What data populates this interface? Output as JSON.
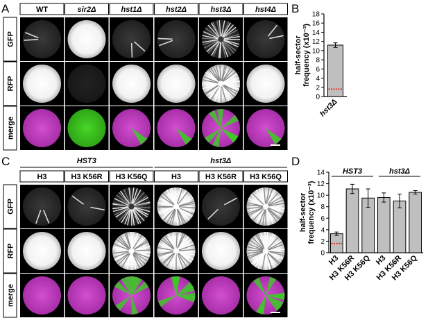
{
  "panels": {
    "A": {
      "letter": "A",
      "columns": [
        "WT",
        "sir2Δ",
        "hst1Δ",
        "hst2Δ",
        "hst3Δ",
        "hst4Δ"
      ],
      "italic": [
        false,
        true,
        true,
        true,
        true,
        true
      ],
      "rows": [
        "GFP",
        "RFP",
        "merge"
      ]
    },
    "C": {
      "letter": "C",
      "groups": [
        "HST3",
        "hst3Δ"
      ],
      "columns": [
        "H3",
        "H3 K56R",
        "H3 K56Q",
        "H3",
        "H3 K56R",
        "H3 K56Q"
      ],
      "rows": [
        "GFP",
        "RFP",
        "merge"
      ]
    }
  },
  "colors": {
    "bar": "#bfbfbf",
    "baseline": "#e0342b",
    "gfp": "#38c81e",
    "rfp_merge": "#c03cc0",
    "background": "#000000"
  },
  "chart_data": [
    {
      "panel": "B",
      "type": "bar",
      "ylabel": "half-sector frequency (x10⁻³)",
      "ylabel_lines": [
        "half-sector",
        "frequency (x10⁻³)"
      ],
      "ylim": [
        0,
        18
      ],
      "yticks": [
        0,
        2,
        4,
        6,
        8,
        10,
        12,
        14,
        16,
        18
      ],
      "categories": [
        "hst3Δ"
      ],
      "values": [
        11.2
      ],
      "errors": [
        0.5
      ],
      "reference_line": 1.6
    },
    {
      "panel": "D",
      "type": "bar",
      "ylabel": "half-sector frequency (x10⁻³)",
      "ylabel_lines": [
        "half-sector",
        "frequency (x10⁻³)"
      ],
      "ylim": [
        0,
        14
      ],
      "yticks": [
        0,
        2,
        4,
        6,
        8,
        10,
        12,
        14
      ],
      "groups": [
        "HST3",
        "hst3Δ"
      ],
      "categories": [
        "H3",
        "H3 K56R",
        "H3 K56Q",
        "H3",
        "H3 K56R",
        "H3 K56Q"
      ],
      "values": [
        3.3,
        11.1,
        9.5,
        9.6,
        9.0,
        10.5
      ],
      "errors": [
        0.3,
        0.8,
        1.6,
        0.8,
        1.2,
        0.3
      ],
      "reference_line": 1.6
    }
  ]
}
